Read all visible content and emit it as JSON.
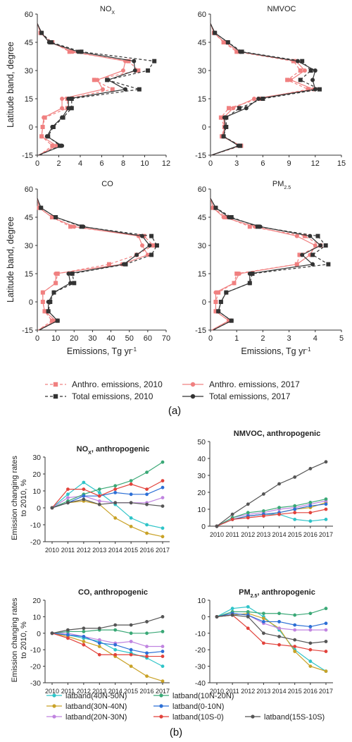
{
  "panel_labels": {
    "a": "(a)",
    "b": "(b)"
  },
  "colors": {
    "anthro": "#f08080",
    "total": "#333333",
    "series": {
      "40N-50N": "#2ec4c8",
      "30N-40N": "#c9a227",
      "20N-30N": "#c084e0",
      "10N-20N": "#3aa876",
      "0-10N": "#2c6fd6",
      "10S-0": "#e2423b",
      "15S-10S": "#555555"
    }
  },
  "legend_a": [
    {
      "label": "Anthro. emissions, 2010",
      "key": "anthro2010"
    },
    {
      "label": "Anthro. emissions, 2017",
      "key": "anthro2017"
    },
    {
      "label": "Total emissions, 2010",
      "key": "total2010"
    },
    {
      "label": "Total emissions, 2017",
      "key": "total2017"
    }
  ],
  "legend_b": [
    {
      "label": "latband(40N-50N)",
      "key": "40N-50N"
    },
    {
      "label": "latband(10N-20N)",
      "key": "10N-20N"
    },
    {
      "label": "latband(30N-40N)",
      "key": "30N-40N"
    },
    {
      "label": "latband(0-10N)",
      "key": "0-10N"
    },
    {
      "label": "latband(20N-30N)",
      "key": "20N-30N"
    },
    {
      "label": "latband(10S-0)",
      "key": "10S-0"
    },
    {
      "label": "latband(15S-10S)",
      "key": "15S-10S"
    }
  ],
  "chart_data": [
    {
      "type": "line",
      "id": "nox_profile",
      "orientation": "vertical-profile",
      "title": "NO",
      "title_sub": "X",
      "ylabel": "Latitude band, degree",
      "xlabel": "",
      "xlim": [
        0,
        12
      ],
      "xticks": [
        "0",
        "2",
        "4",
        "6",
        "8",
        "10",
        "12"
      ],
      "ylim": [
        -15,
        60
      ],
      "yticks": [
        "-15",
        "0",
        "15",
        "30",
        "45",
        "60"
      ],
      "lat": [
        55,
        50,
        45,
        40,
        35,
        30,
        25,
        20,
        15,
        10,
        5,
        0,
        -5,
        -10,
        -15
      ],
      "series": [
        {
          "key": "anthro2010",
          "values": [
            0,
            0.3,
            1.4,
            3.0,
            8.5,
            9.4,
            5.3,
            7.0,
            2.8,
            2.8,
            0.7,
            0.5,
            0.4,
            1.4,
            0.2
          ]
        },
        {
          "key": "anthro2017",
          "values": [
            0,
            0.3,
            1.2,
            3.3,
            8.2,
            8.0,
            5.6,
            6.1,
            2.3,
            2.3,
            0.6,
            0.5,
            0.4,
            1.8,
            0.1
          ]
        },
        {
          "key": "total2010",
          "values": [
            0,
            0.4,
            1.3,
            4.1,
            10.9,
            10.3,
            6.5,
            9.5,
            3.2,
            3.2,
            2.4,
            1.5,
            1.0,
            2.1,
            0.2
          ]
        },
        {
          "key": "total2017",
          "values": [
            0,
            0.4,
            1.1,
            3.8,
            9.0,
            9.1,
            6.6,
            8.2,
            2.9,
            2.9,
            2.3,
            1.4,
            0.9,
            2.3,
            0.1
          ]
        }
      ]
    },
    {
      "type": "line",
      "id": "nmvoc_profile",
      "orientation": "vertical-profile",
      "title": "NMVOC",
      "title_sub": "",
      "ylabel": "",
      "xlabel": "",
      "xlim": [
        0,
        15
      ],
      "xticks": [
        "0",
        "3",
        "6",
        "9",
        "12",
        "15"
      ],
      "ylim": [
        -15,
        60
      ],
      "yticks": [
        "-15",
        "0",
        "15",
        "30",
        "45",
        "60"
      ],
      "lat": [
        55,
        50,
        45,
        40,
        35,
        30,
        25,
        20,
        15,
        10,
        5,
        0,
        -5,
        -10,
        -15
      ],
      "series": [
        {
          "key": "anthro2010",
          "values": [
            0,
            0.4,
            1.5,
            3.0,
            9.5,
            10.3,
            8.8,
            11.2,
            5.6,
            2.1,
            1.2,
            1.6,
            1.3,
            3.5,
            0.1
          ]
        },
        {
          "key": "anthro2017",
          "values": [
            0,
            0.4,
            1.6,
            3.3,
            9.8,
            10.8,
            9.2,
            11.8,
            5.0,
            2.6,
            1.5,
            1.6,
            1.4,
            3.3,
            0.1
          ]
        },
        {
          "key": "total2010",
          "values": [
            0,
            0.5,
            2.0,
            3.6,
            10.5,
            11.5,
            10.3,
            12.5,
            6.0,
            3.3,
            1.8,
            1.8,
            1.5,
            3.4,
            0.1
          ]
        },
        {
          "key": "total2017",
          "values": [
            0,
            0.5,
            2.0,
            3.4,
            10.0,
            12.0,
            11.7,
            12.0,
            5.5,
            4.1,
            1.6,
            1.7,
            1.5,
            3.2,
            0.1
          ]
        }
      ]
    },
    {
      "type": "line",
      "id": "co_profile",
      "orientation": "vertical-profile",
      "title": "CO",
      "title_sub": "",
      "ylabel": "Latitude band, degree",
      "xlabel": "Emissions, Tg yr",
      "xlim": [
        0,
        70
      ],
      "xticks": [
        "0",
        "10",
        "20",
        "30",
        "40",
        "50",
        "60",
        "70"
      ],
      "ylim": [
        -15,
        60
      ],
      "yticks": [
        "-15",
        "0",
        "15",
        "30",
        "45",
        "60"
      ],
      "lat": [
        55,
        50,
        45,
        40,
        35,
        30,
        25,
        20,
        15,
        10,
        5,
        0,
        -5,
        -10,
        -15
      ],
      "series": [
        {
          "key": "anthro2010",
          "values": [
            0,
            1,
            8,
            18,
            58,
            63,
            54,
            39,
            11,
            10,
            3,
            3,
            4,
            8,
            0.5
          ]
        },
        {
          "key": "anthro2017",
          "values": [
            0,
            1,
            8,
            20,
            55,
            57,
            60,
            46,
            10,
            10,
            3,
            3,
            4,
            10,
            0.5
          ]
        },
        {
          "key": "total2010",
          "values": [
            0,
            2,
            10,
            24,
            62,
            65,
            62,
            48,
            19,
            20,
            9,
            7,
            6,
            11,
            1
          ]
        },
        {
          "key": "total2017",
          "values": [
            0,
            2,
            10,
            25,
            57,
            61,
            54,
            47,
            17,
            18,
            9,
            6,
            6,
            11,
            1
          ]
        }
      ]
    },
    {
      "type": "line",
      "id": "pm25_profile",
      "orientation": "vertical-profile",
      "title": "PM",
      "title_sub": "2.5",
      "ylabel": "",
      "xlabel": "Emissions, Tg yr",
      "xlim": [
        0,
        5
      ],
      "xticks": [
        "0",
        "1",
        "2",
        "3",
        "4",
        "5"
      ],
      "ylim": [
        -15,
        60
      ],
      "yticks": [
        "-15",
        "0",
        "15",
        "30",
        "45",
        "60"
      ],
      "lat": [
        55,
        50,
        45,
        40,
        35,
        30,
        25,
        20,
        15,
        10,
        5,
        0,
        -5,
        -10,
        -15
      ],
      "series": [
        {
          "key": "anthro2010",
          "values": [
            0,
            0.1,
            0.6,
            1.5,
            3.6,
            4.2,
            3.4,
            3.3,
            1.0,
            0.9,
            0.3,
            0.2,
            0.2,
            0.7,
            0.05
          ]
        },
        {
          "key": "anthro2017",
          "values": [
            0,
            0.1,
            0.5,
            1.7,
            3.3,
            4.0,
            3.8,
            3.3,
            1.1,
            0.9,
            0.2,
            0.2,
            0.2,
            0.7,
            0.05
          ]
        },
        {
          "key": "total2010",
          "values": [
            0,
            0.2,
            0.8,
            1.8,
            4.1,
            4.4,
            3.9,
            4.5,
            1.6,
            1.5,
            0.6,
            0.4,
            0.3,
            0.8,
            0.1
          ]
        },
        {
          "key": "total2017",
          "values": [
            0,
            0.2,
            0.7,
            1.9,
            3.8,
            4.2,
            3.5,
            3.9,
            1.5,
            1.5,
            0.6,
            0.4,
            0.3,
            0.8,
            0.1
          ]
        }
      ]
    },
    {
      "type": "line",
      "id": "nox_change",
      "title": "NO",
      "title_sub": "X",
      "title_suffix": ", anthropogenic",
      "ylabel": "Emission changing rates to 2010, %",
      "categories": [
        "2010",
        "2011",
        "2012",
        "2013",
        "2014",
        "2015",
        "2016",
        "2017"
      ],
      "ylim": [
        -20,
        30
      ],
      "yticks": [
        "-20",
        "-10",
        "0",
        "10",
        "20",
        "30"
      ],
      "series": [
        {
          "key": "40N-50N",
          "values": [
            0,
            8,
            15,
            9,
            2,
            -6,
            -10,
            -12
          ]
        },
        {
          "key": "30N-40N",
          "values": [
            0,
            3,
            4,
            2,
            -6,
            -11,
            -15,
            -17
          ]
        },
        {
          "key": "20N-30N",
          "values": [
            0,
            6,
            7,
            4,
            3,
            3,
            3,
            6
          ]
        },
        {
          "key": "10N-20N",
          "values": [
            0,
            4,
            8,
            11,
            13,
            16,
            21,
            27
          ]
        },
        {
          "key": "0-10N",
          "values": [
            0,
            3,
            7,
            7,
            9,
            8,
            8,
            12
          ]
        },
        {
          "key": "10S-0",
          "values": [
            0,
            11,
            11,
            7,
            11,
            14,
            11,
            16
          ]
        },
        {
          "key": "15S-10S",
          "values": [
            0,
            3,
            5,
            2,
            3,
            3,
            2,
            1
          ]
        }
      ]
    },
    {
      "type": "line",
      "id": "nmvoc_change",
      "title": "NMVOC, anthropogenic",
      "title_sub": "",
      "title_suffix": "",
      "ylabel": "",
      "categories": [
        "2010",
        "2011",
        "2012",
        "2013",
        "2014",
        "2015",
        "2016",
        "2017"
      ],
      "ylim": [
        0,
        50
      ],
      "yticks": [
        "0",
        "10",
        "20",
        "30",
        "40",
        "50"
      ],
      "series": [
        {
          "key": "40N-50N",
          "values": [
            0,
            4,
            6,
            7,
            7,
            4,
            3,
            4
          ]
        },
        {
          "key": "30N-40N",
          "values": [
            0,
            4,
            6,
            7,
            8,
            10,
            11,
            14
          ]
        },
        {
          "key": "20N-30N",
          "values": [
            0,
            5,
            7,
            8,
            10,
            11,
            13,
            15
          ]
        },
        {
          "key": "10N-20N",
          "values": [
            0,
            5,
            8,
            9,
            11,
            12,
            14,
            16
          ]
        },
        {
          "key": "0-10N",
          "values": [
            0,
            4,
            6,
            7,
            8,
            10,
            12,
            13
          ]
        },
        {
          "key": "10S-0",
          "values": [
            0,
            4,
            5,
            6,
            7,
            8,
            8,
            10
          ]
        },
        {
          "key": "15S-10S",
          "values": [
            0,
            7,
            13,
            19,
            25,
            29,
            34,
            38
          ]
        }
      ]
    },
    {
      "type": "line",
      "id": "co_change",
      "title": "CO, anthropogenic",
      "title_sub": "",
      "title_suffix": "",
      "ylabel": "Emission changing rates to 2010, %",
      "categories": [
        "2010",
        "2011",
        "2012",
        "2013",
        "2014",
        "2015",
        "2016",
        "2017"
      ],
      "ylim": [
        -30,
        20
      ],
      "yticks": [
        "-30",
        "-20",
        "-10",
        "0",
        "10",
        "20"
      ],
      "series": [
        {
          "key": "40N-50N",
          "values": [
            0,
            -1,
            -3,
            -5,
            -10,
            -12,
            -15,
            -20
          ]
        },
        {
          "key": "30N-40N",
          "values": [
            0,
            -2,
            -5,
            -8,
            -14,
            -20,
            -26,
            -29
          ]
        },
        {
          "key": "20N-30N",
          "values": [
            0,
            0,
            -2,
            -4,
            -6,
            -5,
            -8,
            -8
          ]
        },
        {
          "key": "10N-20N",
          "values": [
            0,
            1,
            1,
            2,
            2,
            0,
            0,
            1
          ]
        },
        {
          "key": "0-10N",
          "values": [
            0,
            -1,
            -2,
            -6,
            -7,
            -10,
            -12,
            -11
          ]
        },
        {
          "key": "10S-0",
          "values": [
            0,
            -3,
            -7,
            -13,
            -13,
            -13,
            -14,
            -14
          ]
        },
        {
          "key": "15S-10S",
          "values": [
            0,
            2,
            3,
            3,
            5,
            5,
            7,
            10
          ]
        }
      ]
    },
    {
      "type": "line",
      "id": "pm25_change",
      "title": "PM",
      "title_sub": "2.5",
      "title_suffix": ", anthropogenic",
      "ylabel": "",
      "categories": [
        "2010",
        "2011",
        "2012",
        "2013",
        "2014",
        "2015",
        "2016",
        "2017"
      ],
      "ylim": [
        -40,
        10
      ],
      "yticks": [
        "-40",
        "-30",
        "-20",
        "-10",
        "0",
        "10"
      ],
      "series": [
        {
          "key": "40N-50N",
          "values": [
            0,
            5,
            6,
            0,
            -8,
            -20,
            -27,
            -33
          ]
        },
        {
          "key": "30N-40N",
          "values": [
            0,
            1,
            2,
            -1,
            -7,
            -21,
            -30,
            -33
          ]
        },
        {
          "key": "20N-30N",
          "values": [
            0,
            2,
            1,
            -4,
            -7,
            -8,
            -8,
            -8
          ]
        },
        {
          "key": "10N-20N",
          "values": [
            0,
            3,
            3,
            2,
            2,
            1,
            2,
            5
          ]
        },
        {
          "key": "0-10N",
          "values": [
            0,
            2,
            1,
            -3,
            -3,
            -5,
            -6,
            -4
          ]
        },
        {
          "key": "10S-0",
          "values": [
            0,
            1,
            -7,
            -16,
            -17,
            -18,
            -20,
            -21
          ]
        },
        {
          "key": "15S-10S",
          "values": [
            0,
            1,
            0,
            -10,
            -12,
            -14,
            -16,
            -15
          ]
        }
      ]
    }
  ]
}
